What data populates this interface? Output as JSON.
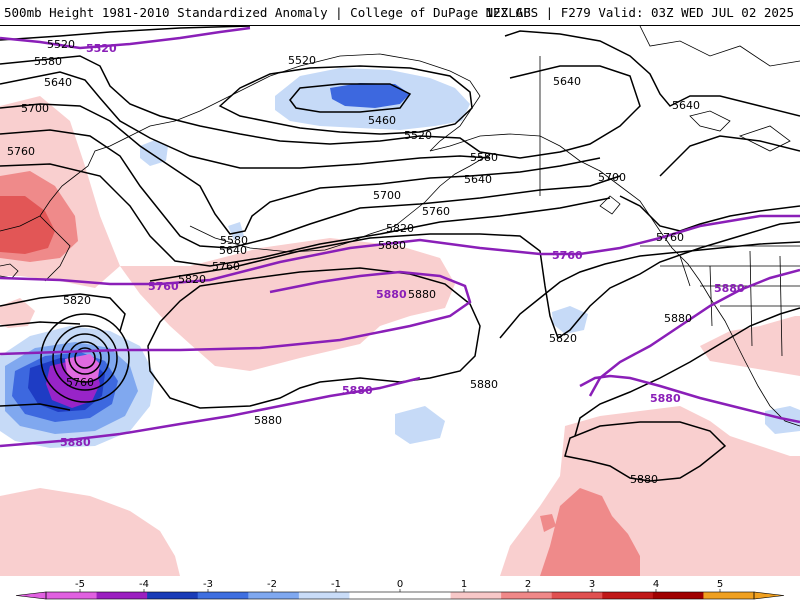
{
  "header": {
    "title": "500mb Height 1981-2010 Standardized Anomaly | College of DuPage NEXLAB",
    "run_info": "12Z GFS | F279 Valid: 03Z WED JUL 02 2025"
  },
  "contour_labels": {
    "h5520_nw": "5520",
    "h5580_nw": "5580",
    "h5640_nw": "5640",
    "h5700_nw": "5700",
    "h5760_nw": "5760",
    "h5520_center": "5520",
    "h5460_low": "5460",
    "h5520_low_s": "5520",
    "h5580_c": "5580",
    "h5640_c": "5640",
    "h5700_c": "5700",
    "h5760_c": "5760",
    "h5820_c": "5820",
    "h5880_c": "5880",
    "h5580_w": "5580",
    "h5640_w": "5640",
    "h5760_w": "5760",
    "h5820_w": "5820",
    "h5820_sw": "5820",
    "h5760_storm": "5760",
    "h5880_mid": "5880",
    "h5880_mid2": "5880",
    "h5880_low": "5880",
    "h5640_ne": "5640",
    "h5640_ne2": "5640",
    "h5700_ne": "5700",
    "h5760_e": "5760",
    "h5820_se": "5820",
    "h5880_se": "5880",
    "h5880_s": "5880"
  },
  "purple_labels": {
    "p5520": "5520",
    "p5760_w": "5760",
    "p5760_e": "5760",
    "p5880_c": "5880",
    "p5880_mid": "5880",
    "p5880_e": "5880",
    "p5880_se": "5880",
    "p5880_sw": "5880"
  },
  "colorbar": {
    "ticks": [
      "-5",
      "-4",
      "-3",
      "-2",
      "-1",
      "0",
      "1",
      "2",
      "3",
      "4",
      "5"
    ],
    "colors": [
      "#e060e0",
      "#9b1fc0",
      "#1a3cb8",
      "#3f6fe0",
      "#7fa8f0",
      "#c9dcf8",
      "#ffffff",
      "#ffffff",
      "#f8c8c8",
      "#f08888",
      "#e05050",
      "#c01818",
      "#a00000",
      "#f0a020"
    ]
  },
  "colors": {
    "pos_light": "#f9cfcf",
    "pos_med": "#ef8a8a",
    "pos_strong": "#e25656",
    "neg_light": "#c6daf7",
    "neg_med": "#80a8ef",
    "neg_strong": "#3d68df",
    "neg_deep": "#1e3cc4",
    "neg_purple": "#9824c8",
    "neg_magenta": "#e06ae0",
    "contour": "#000000",
    "climo_line": "#8a1fb8"
  }
}
